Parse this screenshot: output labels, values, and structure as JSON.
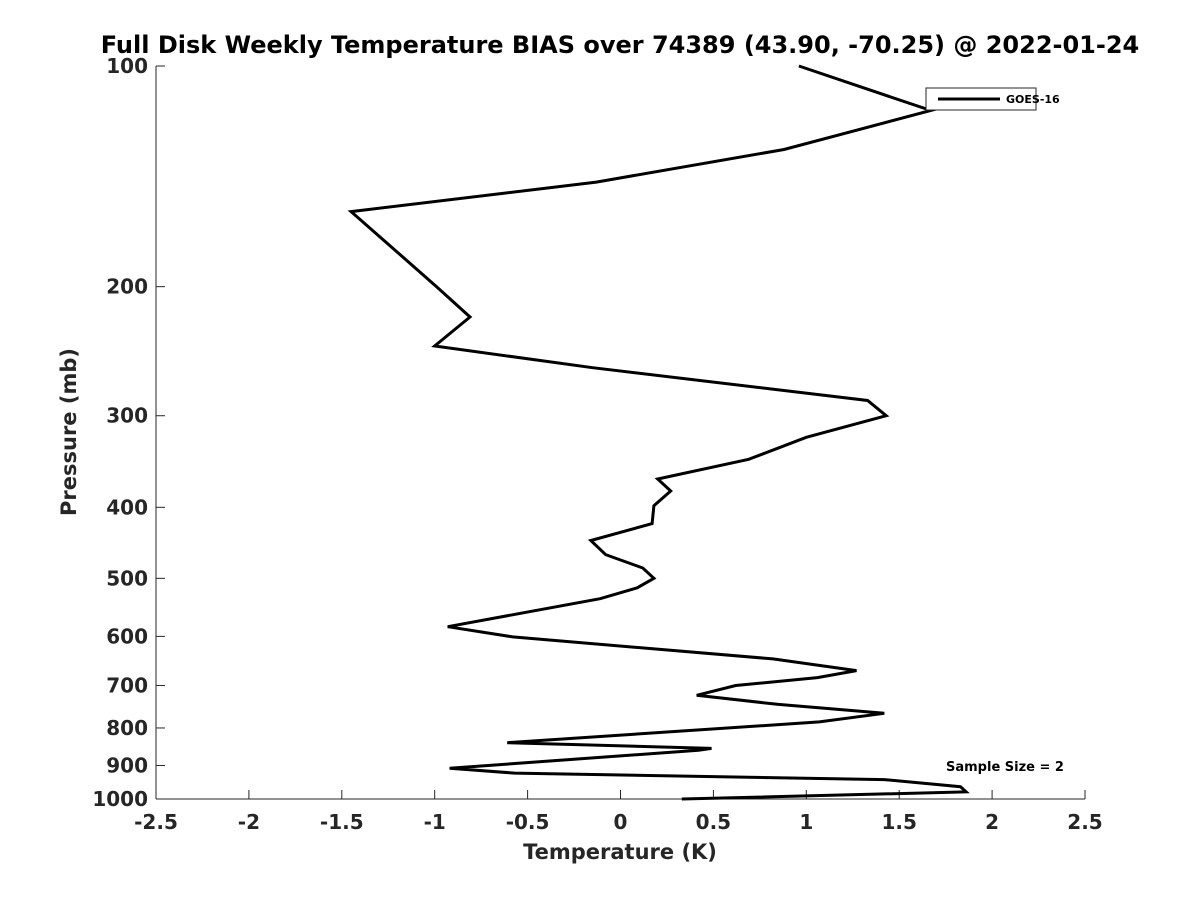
{
  "chart_data": {
    "type": "line",
    "title": "Full Disk Weekly Temperature BIAS over 74389 (43.90, -70.25) @ 2022-01-24",
    "xlabel": "Temperature (K)",
    "ylabel": "Pressure (mb)",
    "xlim": [
      -2.5,
      2.5
    ],
    "ylim": [
      1000,
      100
    ],
    "y_scale": "log",
    "y_reversed": true,
    "grid": false,
    "legend_position": "top-right",
    "xticks": [
      {
        "value": -2.5,
        "label": "-2.5"
      },
      {
        "value": -2,
        "label": "-2"
      },
      {
        "value": -1.5,
        "label": "-1.5"
      },
      {
        "value": -1,
        "label": "-1"
      },
      {
        "value": -0.5,
        "label": "-0.5"
      },
      {
        "value": 0,
        "label": "0"
      },
      {
        "value": 0.5,
        "label": "0.5"
      },
      {
        "value": 1,
        "label": "1"
      },
      {
        "value": 1.5,
        "label": "1.5"
      },
      {
        "value": 2,
        "label": "2"
      },
      {
        "value": 2.5,
        "label": "2.5"
      }
    ],
    "yticks": [
      {
        "value": 100,
        "label": "100"
      },
      {
        "value": 200,
        "label": "200"
      },
      {
        "value": 300,
        "label": "300"
      },
      {
        "value": 400,
        "label": "400"
      },
      {
        "value": 500,
        "label": "500"
      },
      {
        "value": 600,
        "label": "600"
      },
      {
        "value": 700,
        "label": "700"
      },
      {
        "value": 800,
        "label": "800"
      },
      {
        "value": 900,
        "label": "900"
      },
      {
        "value": 1000,
        "label": "1000"
      }
    ],
    "annotation": "Sample Size = 2",
    "series": [
      {
        "name": "GOES-16",
        "color": "#000000",
        "points": [
          {
            "x": 0.96,
            "y": 100
          },
          {
            "x": 1.67,
            "y": 115
          },
          {
            "x": 0.88,
            "y": 130
          },
          {
            "x": -0.13,
            "y": 144
          },
          {
            "x": -1.45,
            "y": 158
          },
          {
            "x": -0.99,
            "y": 200
          },
          {
            "x": -0.81,
            "y": 220
          },
          {
            "x": -1.0,
            "y": 241
          },
          {
            "x": -0.15,
            "y": 258
          },
          {
            "x": 1.33,
            "y": 286
          },
          {
            "x": 1.43,
            "y": 300
          },
          {
            "x": 1.0,
            "y": 321
          },
          {
            "x": 0.69,
            "y": 344
          },
          {
            "x": 0.2,
            "y": 366
          },
          {
            "x": 0.27,
            "y": 380
          },
          {
            "x": 0.18,
            "y": 398
          },
          {
            "x": 0.17,
            "y": 421
          },
          {
            "x": -0.16,
            "y": 444
          },
          {
            "x": -0.08,
            "y": 464
          },
          {
            "x": 0.12,
            "y": 484
          },
          {
            "x": 0.18,
            "y": 500
          },
          {
            "x": 0.09,
            "y": 515
          },
          {
            "x": -0.11,
            "y": 533
          },
          {
            "x": -0.93,
            "y": 582
          },
          {
            "x": -0.58,
            "y": 601
          },
          {
            "x": 0.82,
            "y": 644
          },
          {
            "x": 1.27,
            "y": 668
          },
          {
            "x": 1.06,
            "y": 683
          },
          {
            "x": 0.62,
            "y": 700
          },
          {
            "x": 0.41,
            "y": 722
          },
          {
            "x": 0.85,
            "y": 743
          },
          {
            "x": 1.42,
            "y": 764
          },
          {
            "x": 1.07,
            "y": 785
          },
          {
            "x": -0.61,
            "y": 838
          },
          {
            "x": 0.49,
            "y": 853
          },
          {
            "x": 0.42,
            "y": 858
          },
          {
            "x": -0.92,
            "y": 908
          },
          {
            "x": -0.57,
            "y": 922
          },
          {
            "x": 1.42,
            "y": 941
          },
          {
            "x": 1.83,
            "y": 962
          },
          {
            "x": 1.86,
            "y": 978
          },
          {
            "x": 0.33,
            "y": 1000
          }
        ]
      }
    ]
  }
}
